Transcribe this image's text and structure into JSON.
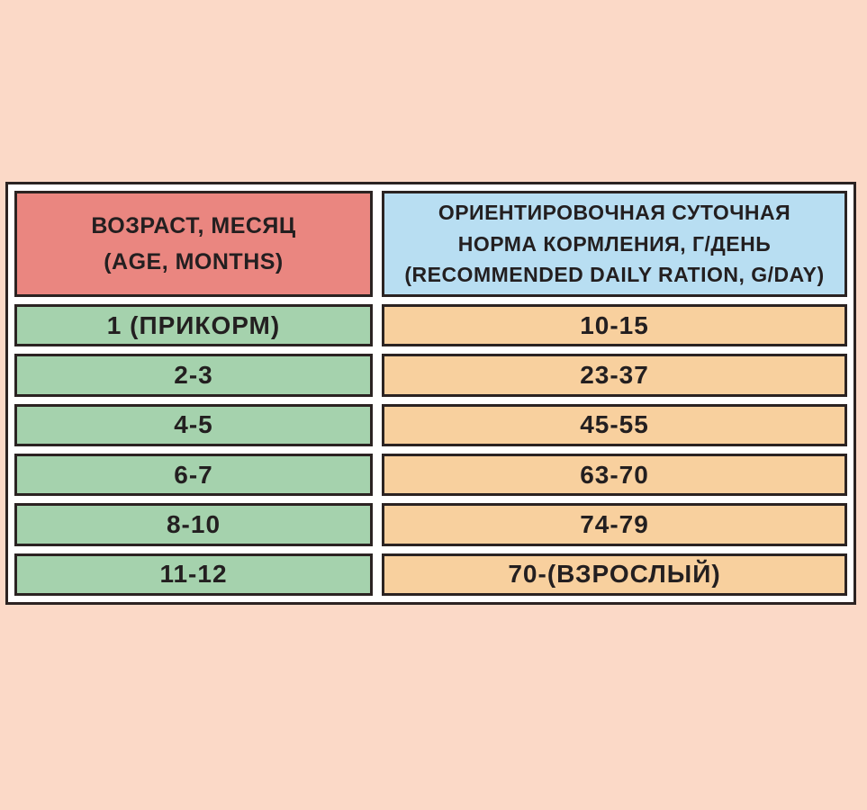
{
  "colors": {
    "page_background": "#fbd9c7",
    "table_border": "#2b2322",
    "frame_fill": "#ffffff",
    "age_header_bg": "#ea8680",
    "ration_header_bg": "#b8def2",
    "age_cell_bg": "#a5d2ad",
    "ration_cell_bg": "#f8d09e",
    "text": "#231f20"
  },
  "table": {
    "header": {
      "age_column": {
        "lines": [
          "ВОЗРАСТ, МЕСЯЦ",
          "(AGE, MONTHS)"
        ]
      },
      "ration_column": {
        "lines": [
          "ОРИЕНТИРОВОЧНАЯ СУТОЧНАЯ",
          "НОРМА КОРМЛЕНИЯ, Г/ДЕНЬ",
          "(RECOMMENDED DAILY RATION, G/DAY)"
        ]
      }
    },
    "rows": [
      {
        "age": "1 (ПРИКОРМ)",
        "ration": "10-15"
      },
      {
        "age": "2-3",
        "ration": "23-37"
      },
      {
        "age": "4-5",
        "ration": "45-55"
      },
      {
        "age": "6-7",
        "ration": "63-70"
      },
      {
        "age": "8-10",
        "ration": "74-79"
      },
      {
        "age": "11-12",
        "ration": "70-(ВЗРОСЛЫЙ)"
      }
    ]
  },
  "chart_data": {
    "type": "table",
    "columns": [
      "ВОЗРАСТ, МЕСЯЦ (AGE, MONTHS)",
      "ОРИЕНТИРОВОЧНАЯ СУТОЧНАЯ НОРМА КОРМЛЕНИЯ, Г/ДЕНЬ (RECOMMENDED DAILY RATION, G/DAY)"
    ],
    "rows": [
      [
        "1 (ПРИКОРМ)",
        "10-15"
      ],
      [
        "2-3",
        "23-37"
      ],
      [
        "4-5",
        "45-55"
      ],
      [
        "6-7",
        "63-70"
      ],
      [
        "8-10",
        "74-79"
      ],
      [
        "11-12",
        "70-(ВЗРОСЛЫЙ)"
      ]
    ]
  }
}
